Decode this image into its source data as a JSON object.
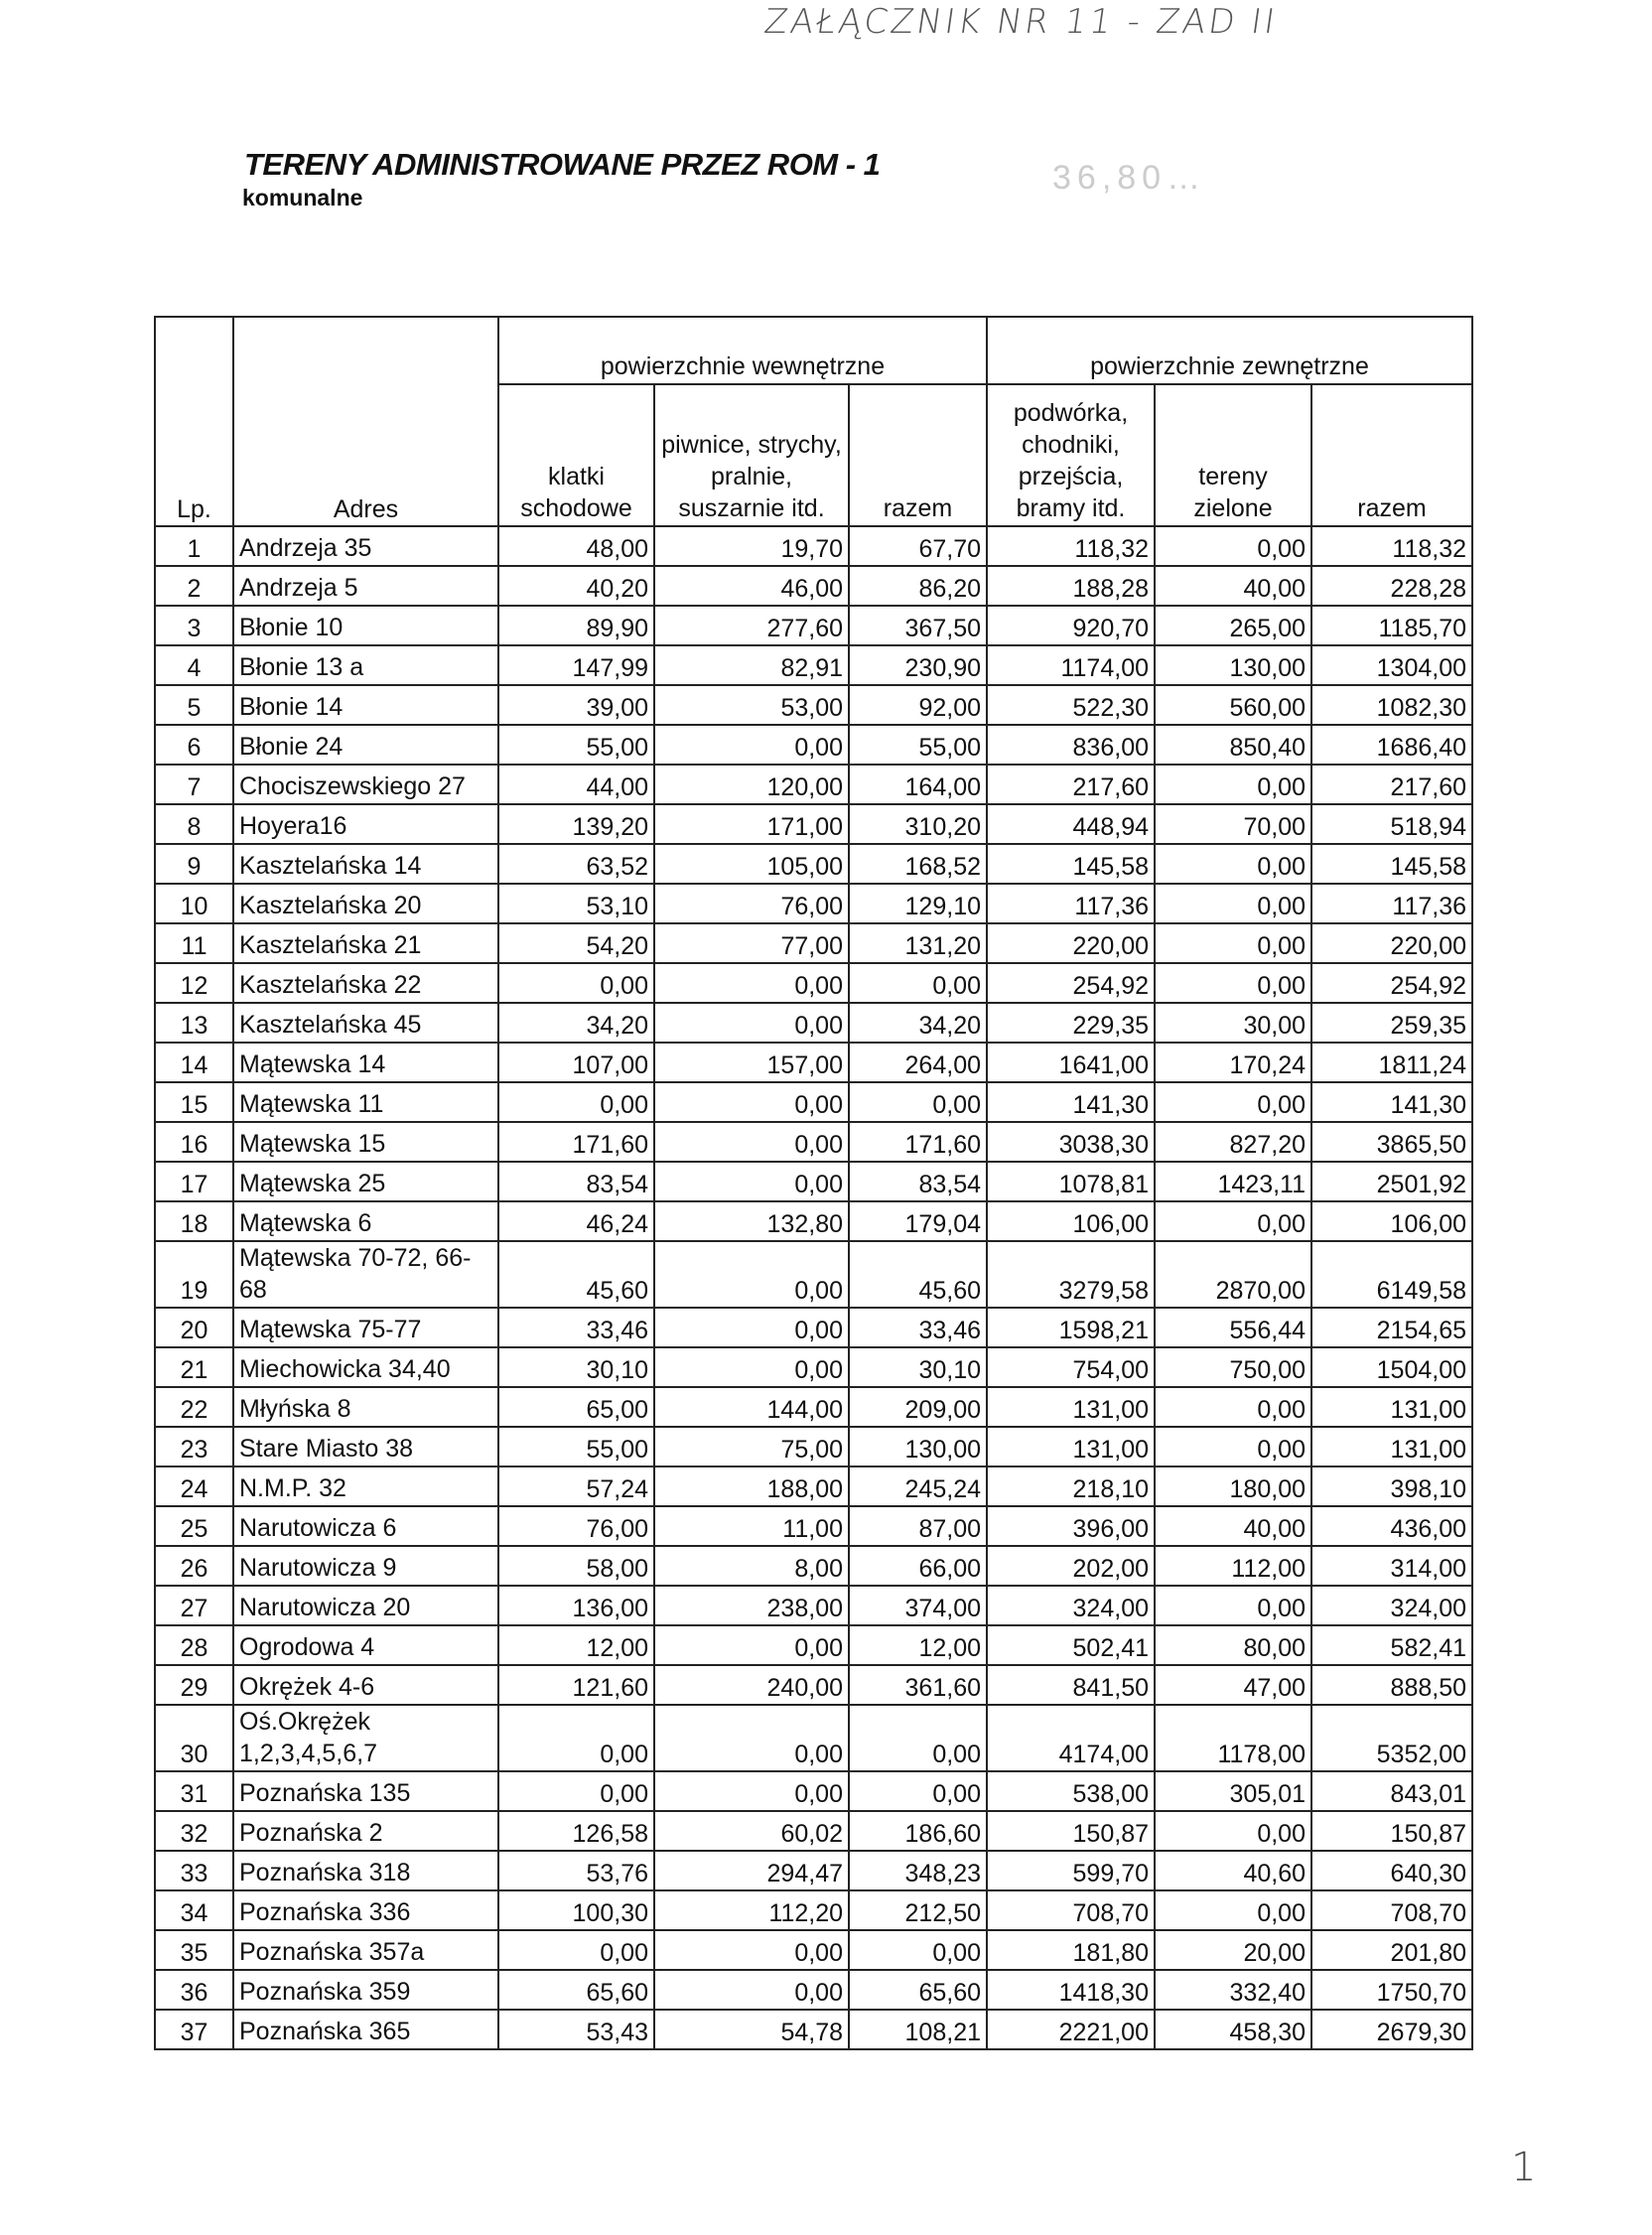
{
  "handwritten_note": "ZAŁĄCZNIK NR 11 - ZAD II",
  "stamp_note": "36,80…",
  "title": "TERENY ADMINISTROWANE PRZEZ ROM - 1",
  "subtitle": "komunalne",
  "headers": {
    "lp": "Lp.",
    "adres": "Adres",
    "group_inner": "powierzchnie wewnętrzne",
    "group_outer": "powierzchnie zewnętrzne",
    "klatki": "klatki schodowe",
    "piwnice": "piwnice, strychy, pralnie, suszarnie itd.",
    "razem_inner": "razem",
    "podworka": "podwórka, chodniki, przejścia, bramy itd.",
    "tereny": "tereny zielone",
    "razem_outer": "razem"
  },
  "rows": [
    [
      "1",
      "Andrzeja 35",
      "48,00",
      "19,70",
      "67,70",
      "118,32",
      "0,00",
      "118,32"
    ],
    [
      "2",
      "Andrzeja 5",
      "40,20",
      "46,00",
      "86,20",
      "188,28",
      "40,00",
      "228,28"
    ],
    [
      "3",
      "Błonie 10",
      "89,90",
      "277,60",
      "367,50",
      "920,70",
      "265,00",
      "1185,70"
    ],
    [
      "4",
      "Błonie 13 a",
      "147,99",
      "82,91",
      "230,90",
      "1174,00",
      "130,00",
      "1304,00"
    ],
    [
      "5",
      "Błonie 14",
      "39,00",
      "53,00",
      "92,00",
      "522,30",
      "560,00",
      "1082,30"
    ],
    [
      "6",
      "Błonie 24",
      "55,00",
      "0,00",
      "55,00",
      "836,00",
      "850,40",
      "1686,40"
    ],
    [
      "7",
      "Chociszewskiego 27",
      "44,00",
      "120,00",
      "164,00",
      "217,60",
      "0,00",
      "217,60"
    ],
    [
      "8",
      "Hoyera16",
      "139,20",
      "171,00",
      "310,20",
      "448,94",
      "70,00",
      "518,94"
    ],
    [
      "9",
      "Kasztelańska 14",
      "63,52",
      "105,00",
      "168,52",
      "145,58",
      "0,00",
      "145,58"
    ],
    [
      "10",
      "Kasztelańska 20",
      "53,10",
      "76,00",
      "129,10",
      "117,36",
      "0,00",
      "117,36"
    ],
    [
      "11",
      "Kasztelańska 21",
      "54,20",
      "77,00",
      "131,20",
      "220,00",
      "0,00",
      "220,00"
    ],
    [
      "12",
      "Kasztelańska 22",
      "0,00",
      "0,00",
      "0,00",
      "254,92",
      "0,00",
      "254,92"
    ],
    [
      "13",
      "Kasztelańska 45",
      "34,20",
      "0,00",
      "34,20",
      "229,35",
      "30,00",
      "259,35"
    ],
    [
      "14",
      "Mątewska 14",
      "107,00",
      "157,00",
      "264,00",
      "1641,00",
      "170,24",
      "1811,24"
    ],
    [
      "15",
      "Mątewska 11",
      "0,00",
      "0,00",
      "0,00",
      "141,30",
      "0,00",
      "141,30"
    ],
    [
      "16",
      "Mątewska 15",
      "171,60",
      "0,00",
      "171,60",
      "3038,30",
      "827,20",
      "3865,50"
    ],
    [
      "17",
      "Mątewska 25",
      "83,54",
      "0,00",
      "83,54",
      "1078,81",
      "1423,11",
      "2501,92"
    ],
    [
      "18",
      "Mątewska 6",
      "46,24",
      "132,80",
      "179,04",
      "106,00",
      "0,00",
      "106,00"
    ],
    [
      "19",
      "Mątewska 70-72, 66-68",
      "45,60",
      "0,00",
      "45,60",
      "3279,58",
      "2870,00",
      "6149,58"
    ],
    [
      "20",
      "Mątewska 75-77",
      "33,46",
      "0,00",
      "33,46",
      "1598,21",
      "556,44",
      "2154,65"
    ],
    [
      "21",
      "Miechowicka 34,40",
      "30,10",
      "0,00",
      "30,10",
      "754,00",
      "750,00",
      "1504,00"
    ],
    [
      "22",
      "Młyńska 8",
      "65,00",
      "144,00",
      "209,00",
      "131,00",
      "0,00",
      "131,00"
    ],
    [
      "23",
      "Stare Miasto 38",
      "55,00",
      "75,00",
      "130,00",
      "131,00",
      "0,00",
      "131,00"
    ],
    [
      "24",
      "N.M.P. 32",
      "57,24",
      "188,00",
      "245,24",
      "218,10",
      "180,00",
      "398,10"
    ],
    [
      "25",
      "Narutowicza 6",
      "76,00",
      "11,00",
      "87,00",
      "396,00",
      "40,00",
      "436,00"
    ],
    [
      "26",
      "Narutowicza 9",
      "58,00",
      "8,00",
      "66,00",
      "202,00",
      "112,00",
      "314,00"
    ],
    [
      "27",
      "Narutowicza 20",
      "136,00",
      "238,00",
      "374,00",
      "324,00",
      "0,00",
      "324,00"
    ],
    [
      "28",
      "Ogrodowa 4",
      "12,00",
      "0,00",
      "12,00",
      "502,41",
      "80,00",
      "582,41"
    ],
    [
      "29",
      "Okrężek 4-6",
      "121,60",
      "240,00",
      "361,60",
      "841,50",
      "47,00",
      "888,50"
    ],
    [
      "30",
      "Oś.Okrężek 1,2,3,4,5,6,7",
      "0,00",
      "0,00",
      "0,00",
      "4174,00",
      "1178,00",
      "5352,00"
    ],
    [
      "31",
      "Poznańska 135",
      "0,00",
      "0,00",
      "0,00",
      "538,00",
      "305,01",
      "843,01"
    ],
    [
      "32",
      "Poznańska 2",
      "126,58",
      "60,02",
      "186,60",
      "150,87",
      "0,00",
      "150,87"
    ],
    [
      "33",
      "Poznańska 318",
      "53,76",
      "294,47",
      "348,23",
      "599,70",
      "40,60",
      "640,30"
    ],
    [
      "34",
      "Poznańska 336",
      "100,30",
      "112,20",
      "212,50",
      "708,70",
      "0,00",
      "708,70"
    ],
    [
      "35",
      "Poznańska 357a",
      "0,00",
      "0,00",
      "0,00",
      "181,80",
      "20,00",
      "201,80"
    ],
    [
      "36",
      "Poznańska 359",
      "65,60",
      "0,00",
      "65,60",
      "1418,30",
      "332,40",
      "1750,70"
    ],
    [
      "37",
      "Poznańska 365",
      "53,43",
      "54,78",
      "108,21",
      "2221,00",
      "458,30",
      "2679,30"
    ]
  ],
  "page_number": "1"
}
